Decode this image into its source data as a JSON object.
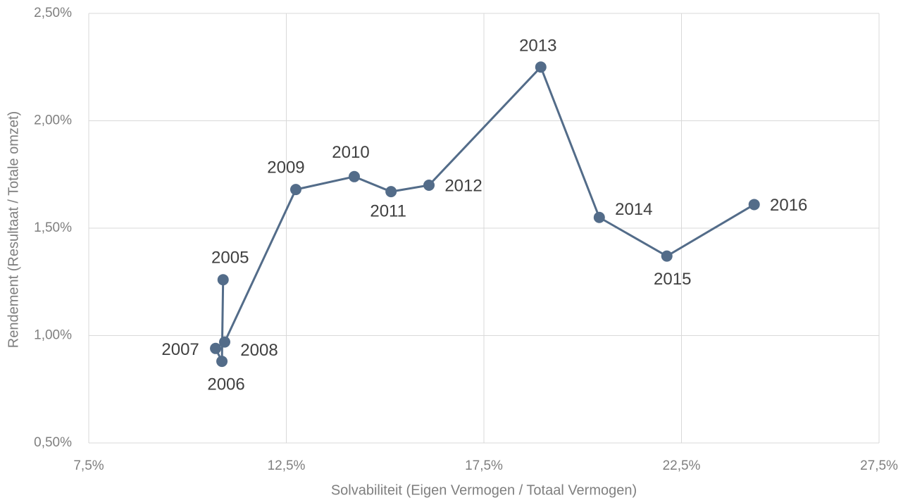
{
  "chart_data": {
    "type": "scatter",
    "x_label": "Solvabiliteit (Eigen Vermogen / Totaal Vermogen)",
    "y_label": "Rendement (Resultaat / Totale omzet)",
    "labels": [
      "2005",
      "2006",
      "2007",
      "2008",
      "2009",
      "2010",
      "2011",
      "2012",
      "2013",
      "2014",
      "2015",
      "2016"
    ],
    "x": [
      10.9,
      10.87,
      10.71,
      10.94,
      12.74,
      14.22,
      15.15,
      16.11,
      18.94,
      20.42,
      22.13,
      24.34
    ],
    "values": [
      1.26,
      0.88,
      0.94,
      0.97,
      1.68,
      1.74,
      1.67,
      1.7,
      2.25,
      1.55,
      1.37,
      1.61
    ],
    "color": "#536c89",
    "connected": true,
    "grid": true,
    "xlim": [
      7.5,
      27.5
    ],
    "xticks": [
      {
        "value": 7.5,
        "label": "7,5%"
      },
      {
        "value": 12.5,
        "label": "12,5%"
      },
      {
        "value": 17.5,
        "label": "17,5%"
      },
      {
        "value": 22.5,
        "label": "22,5%"
      },
      {
        "value": 27.5,
        "label": "27,5%"
      }
    ],
    "ylim": [
      0.5,
      2.5
    ],
    "yticks": [
      {
        "value": 0.5,
        "label": "0,50%"
      },
      {
        "value": 1.0,
        "label": "1,00%"
      },
      {
        "value": 1.5,
        "label": "1,50%"
      },
      {
        "value": 2.0,
        "label": "2,00%"
      },
      {
        "value": 2.5,
        "label": "2,50%"
      }
    ]
  }
}
